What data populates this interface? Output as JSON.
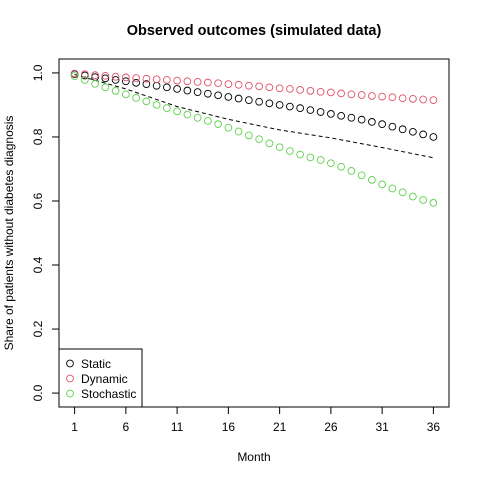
{
  "chart_data": {
    "type": "scatter",
    "title": "Observed outcomes (simulated data)",
    "xlabel": "Month",
    "ylabel": "Share of patients without diabetes diagnosis",
    "xlim": [
      1,
      36
    ],
    "ylim": [
      0,
      1
    ],
    "x_ticks": [
      1,
      6,
      11,
      16,
      21,
      26,
      31,
      36
    ],
    "y_ticks": [
      0.0,
      0.2,
      0.4,
      0.6,
      0.8,
      1.0
    ],
    "y_tick_labels": [
      "0.0",
      "0.2",
      "0.4",
      "0.6",
      "0.8",
      "1.0"
    ],
    "grid": false,
    "legend_position": "bottom-left",
    "x": [
      1,
      2,
      3,
      4,
      5,
      6,
      7,
      8,
      9,
      10,
      11,
      12,
      13,
      14,
      15,
      16,
      17,
      18,
      19,
      20,
      21,
      22,
      23,
      24,
      25,
      26,
      27,
      28,
      29,
      30,
      31,
      32,
      33,
      34,
      35,
      36
    ],
    "series": [
      {
        "name": "Static",
        "color": "#000000",
        "marker": "open-circle",
        "values": [
          0.996,
          0.992,
          0.987,
          0.983,
          0.978,
          0.974,
          0.969,
          0.965,
          0.96,
          0.955,
          0.95,
          0.945,
          0.94,
          0.935,
          0.93,
          0.925,
          0.92,
          0.915,
          0.91,
          0.905,
          0.9,
          0.895,
          0.89,
          0.884,
          0.878,
          0.872,
          0.866,
          0.86,
          0.854,
          0.847,
          0.84,
          0.832,
          0.824,
          0.816,
          0.808,
          0.8
        ]
      },
      {
        "name": "Dynamic",
        "color": "#DF536B",
        "marker": "open-circle",
        "values": [
          0.998,
          0.996,
          0.993,
          0.991,
          0.988,
          0.986,
          0.984,
          0.982,
          0.98,
          0.978,
          0.976,
          0.974,
          0.972,
          0.97,
          0.968,
          0.965,
          0.963,
          0.96,
          0.958,
          0.955,
          0.952,
          0.95,
          0.947,
          0.944,
          0.941,
          0.939,
          0.936,
          0.933,
          0.931,
          0.928,
          0.926,
          0.924,
          0.921,
          0.919,
          0.917,
          0.915
        ]
      },
      {
        "name": "Stochastic",
        "color": "#61D04F",
        "marker": "open-circle",
        "values": [
          0.99,
          0.978,
          0.966,
          0.955,
          0.944,
          0.933,
          0.922,
          0.911,
          0.9,
          0.89,
          0.88,
          0.87,
          0.86,
          0.85,
          0.84,
          0.829,
          0.817,
          0.805,
          0.793,
          0.78,
          0.768,
          0.756,
          0.745,
          0.736,
          0.728,
          0.718,
          0.707,
          0.694,
          0.68,
          0.666,
          0.652,
          0.639,
          0.627,
          0.614,
          0.603,
          0.594
        ]
      }
    ],
    "reference_line": {
      "style": "dashed",
      "color": "#000000",
      "x": [
        1,
        6,
        11,
        16,
        21,
        26,
        31,
        36
      ],
      "y": [
        0.995,
        0.95,
        0.895,
        0.855,
        0.822,
        0.797,
        0.767,
        0.735
      ]
    }
  }
}
